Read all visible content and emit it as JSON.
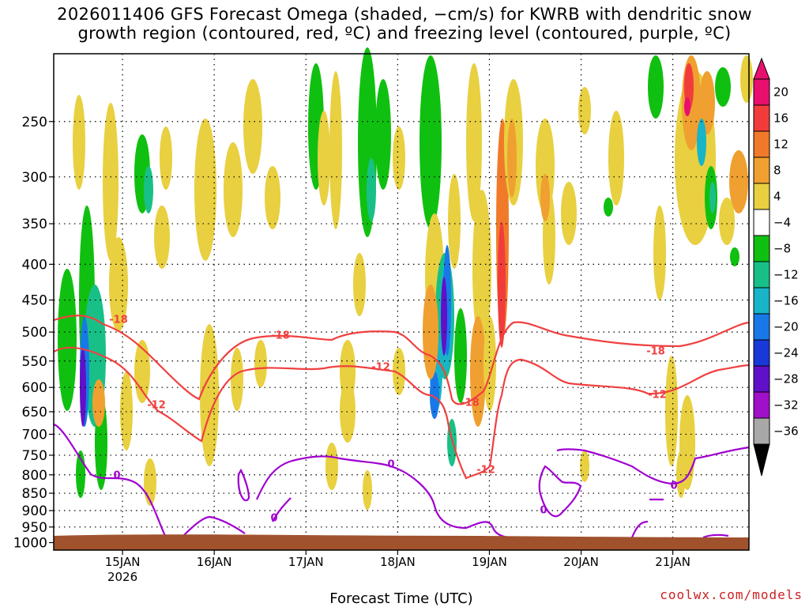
{
  "chart_data": {
    "type": "heatmap",
    "title_line1": "2026011406 GFS Forecast Omega (shaded, −cm/s) for KWRB with dendritic snow",
    "title_line2": "growth region (contoured, red, ºC) and freezing level (contoured, purple, ºC)",
    "xlabel": "Forecast Time (UTC)",
    "ylabel": "",
    "credit": "coolwx.com/models",
    "x_ticks": [
      {
        "label": "15JAN",
        "sub": "2026",
        "day": 15
      },
      {
        "label": "16JAN",
        "sub": "",
        "day": 16
      },
      {
        "label": "17JAN",
        "sub": "",
        "day": 17
      },
      {
        "label": "18JAN",
        "sub": "",
        "day": 18
      },
      {
        "label": "19JAN",
        "sub": "",
        "day": 19
      },
      {
        "label": "20JAN",
        "sub": "",
        "day": 20
      },
      {
        "label": "21JAN",
        "sub": "",
        "day": 21
      }
    ],
    "xlim_days": [
      14.25,
      21.83
    ],
    "y_ticks": [
      250,
      300,
      350,
      400,
      450,
      500,
      550,
      600,
      650,
      700,
      750,
      800,
      850,
      900,
      950,
      1000
    ],
    "ylim_hpa": [
      200,
      1025
    ],
    "y_scale": "log",
    "grid": true,
    "colorbar": {
      "labels": [
        "20",
        "16",
        "12",
        "8",
        "4",
        "−4",
        "−8",
        "−12",
        "−16",
        "−20",
        "−24",
        "−28",
        "−32",
        "−36"
      ],
      "colors": [
        "#e8106e",
        "#f23c3c",
        "#f07a2a",
        "#f0a030",
        "#e8d040",
        "#ffffff",
        "#10c010",
        "#18c088",
        "#18b4c8",
        "#1878e8",
        "#1838d8",
        "#6010c8",
        "#a010c8",
        "#a8a8a8"
      ],
      "top_color": "#e8106e",
      "bottom_color": "#000000"
    },
    "contour_labels": {
      "dgz_upper": "-18",
      "dgz_lower": "-12",
      "freezing": "0"
    },
    "terrain_color": "#a0522d"
  }
}
